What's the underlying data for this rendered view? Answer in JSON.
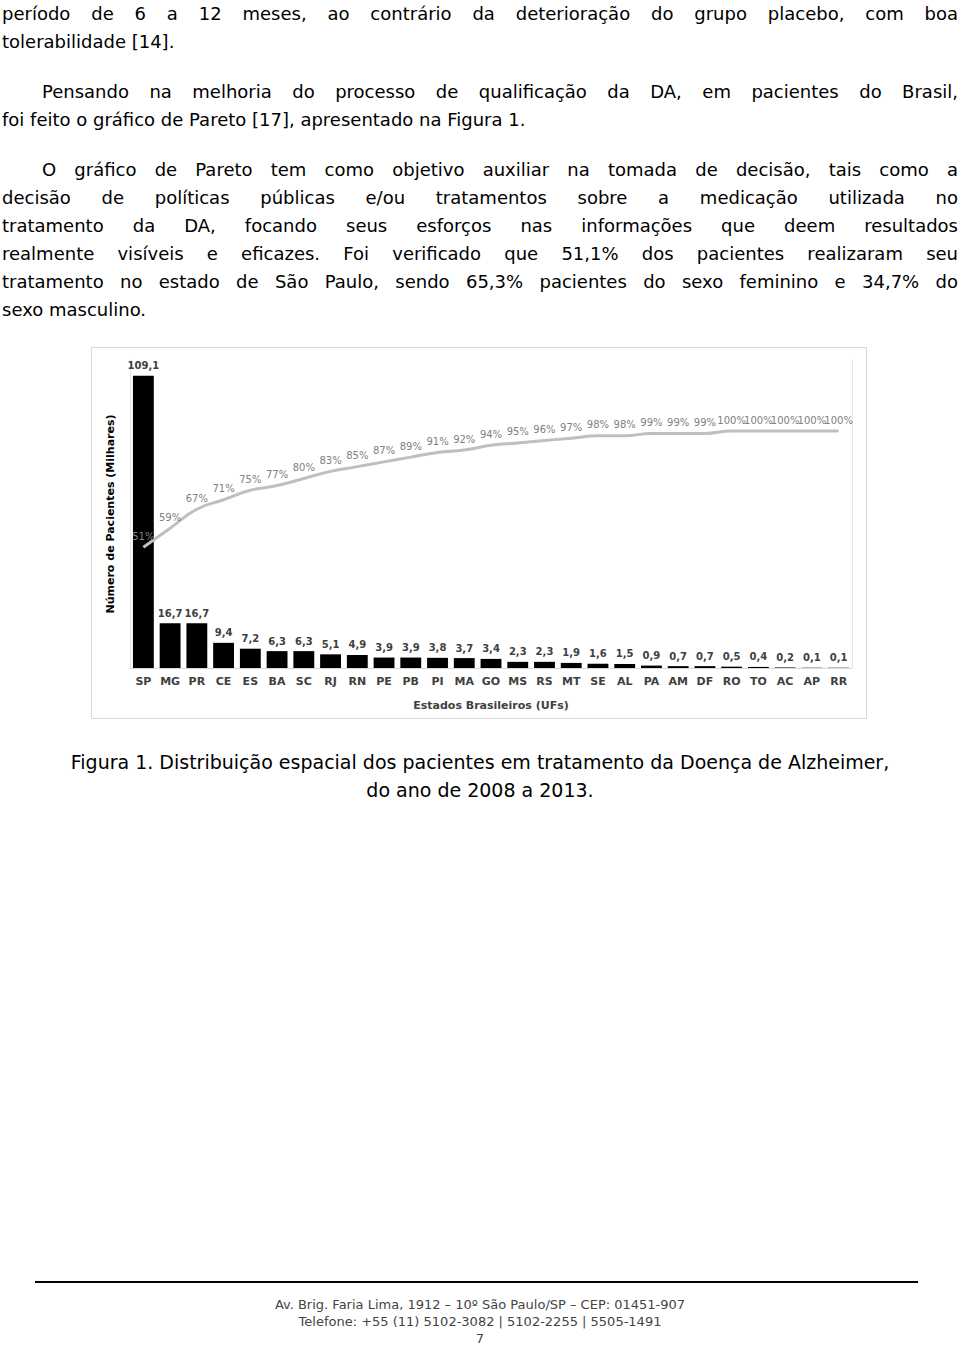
{
  "paragraphs": [
    [
      "período de 6 a 12 meses, ao contrário da deterioração do grupo placebo, com boa",
      "tolerabilidade [14]."
    ],
    [
      "Pensando na melhoria do processo de qualificação da DA, em pacientes do Brasil,",
      "foi feito o gráfico de Pareto [17], apresentado na Figura 1."
    ],
    [
      "O gráfico de Pareto tem como objetivo auxiliar na tomada de decisão, tais como a",
      "decisão de políticas públicas e/ou tratamentos sobre a medicação utilizada no",
      "tratamento da DA, focando seus esforços nas informações que deem resultados",
      "realmente visíveis e eficazes. Foi verificado que 51,1% dos pacientes realizaram seu",
      "tratamento no estado de São Paulo, sendo 65,3% pacientes do sexo feminino e 34,7% do",
      "sexo masculino."
    ]
  ],
  "chart_data": {
    "type": "bar",
    "x_label": "Estados Brasileiros (UFs)",
    "y_label": "Número de Pacientes (Milhares)",
    "categories": [
      "SP",
      "MG",
      "PR",
      "CE",
      "ES",
      "BA",
      "SC",
      "RJ",
      "RN",
      "PE",
      "PB",
      "PI",
      "MA",
      "GO",
      "MS",
      "RS",
      "MT",
      "SE",
      "AL",
      "PA",
      "AM",
      "DF",
      "RO",
      "TO",
      "AC",
      "AP",
      "RR"
    ],
    "series": [
      {
        "type": "bar",
        "color": "#000000",
        "values": [
          109.1,
          16.7,
          16.7,
          9.4,
          7.2,
          6.3,
          6.3,
          5.1,
          4.9,
          3.9,
          3.9,
          3.8,
          3.7,
          3.4,
          2.3,
          2.3,
          1.9,
          1.6,
          1.5,
          0.9,
          0.7,
          0.7,
          0.5,
          0.4,
          0.2,
          0.1,
          0.1
        ],
        "value_labels": [
          "109,1",
          "16,7",
          "16,7",
          "9,4",
          "7,2",
          "6,3",
          "6,3",
          "5,1",
          "4,9",
          "3,9",
          "3,9",
          "3,8",
          "3,7",
          "3,4",
          "2,3",
          "2,3",
          "1,9",
          "1,6",
          "1,5",
          "0,9",
          "0,7",
          "0,7",
          "0,5",
          "0,4",
          "0,2",
          "0,1",
          "0,1"
        ]
      },
      {
        "type": "line",
        "axis": "y2",
        "color": "#bfbfbf",
        "values": [
          51,
          59,
          67,
          71,
          75,
          77,
          80,
          83,
          85,
          87,
          89,
          91,
          92,
          94,
          95,
          96,
          97,
          98,
          98,
          99,
          99,
          99,
          100,
          100,
          100,
          100,
          100
        ],
        "value_labels": [
          "51%",
          "59%",
          "67%",
          "71%",
          "75%",
          "77%",
          "80%",
          "83%",
          "85%",
          "87%",
          "89%",
          "91%",
          "92%",
          "94%",
          "95%",
          "96%",
          "97%",
          "98%",
          "98%",
          "99%",
          "99%",
          "99%",
          "100%",
          "100%",
          "100%",
          "100%",
          "100%"
        ]
      }
    ],
    "ylim": [
      0,
      115
    ],
    "y2lim": [
      0,
      130
    ],
    "data_labels": true,
    "tick_labels": "x",
    "grid": false
  },
  "caption": [
    "Figura 1. Distribuição espacial dos pacientes em tratamento da Doença de Alzheimer,",
    "do ano de 2008 a 2013."
  ],
  "footer": [
    "Av. Brig. Faria Lima, 1912 – 10º São Paulo/SP – CEP: 01451-907",
    "Telefone: +55 (11) 5102-3082 | 5102-2255 | 5505-1491"
  ],
  "page_number": "7"
}
